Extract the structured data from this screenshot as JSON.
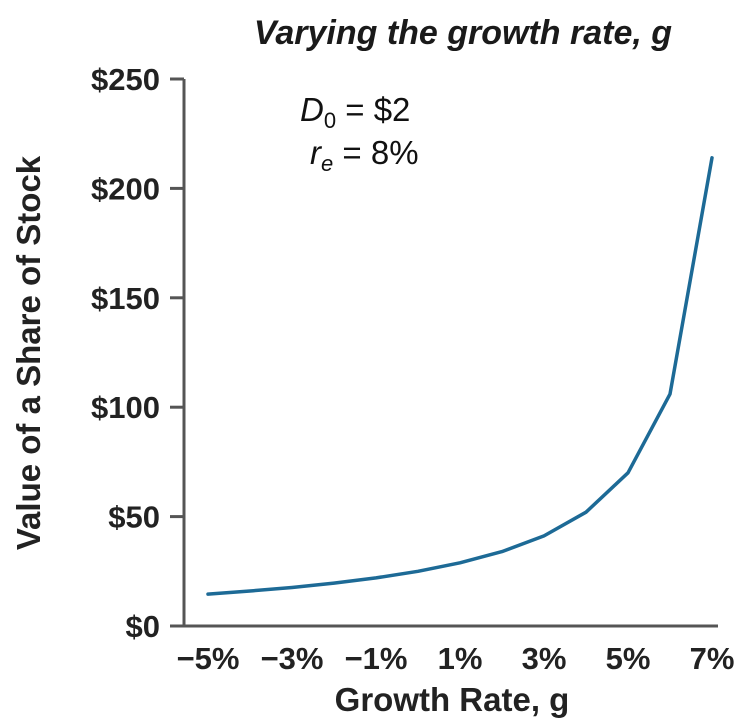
{
  "chart_data": {
    "type": "line",
    "title": "Varying the growth rate, g",
    "xlabel": "Growth Rate, g",
    "ylabel": "Value of a Share of Stock",
    "x": [
      -0.05,
      -0.04,
      -0.03,
      -0.02,
      -0.01,
      0.0,
      0.01,
      0.02,
      0.03,
      0.04,
      0.05,
      0.06,
      0.07
    ],
    "x_tick_values": [
      -0.05,
      -0.03,
      -0.01,
      0.01,
      0.03,
      0.05,
      0.07
    ],
    "x_tick_labels": [
      "−5%",
      "−3%",
      "−1%",
      "1%",
      "3%",
      "5%",
      "7%"
    ],
    "y_tick_values": [
      0,
      50,
      100,
      150,
      200,
      250
    ],
    "y_tick_labels": [
      "$0",
      "$50",
      "$100",
      "$150",
      "$200",
      "$250"
    ],
    "xlim": [
      -0.05,
      0.07
    ],
    "ylim": [
      0,
      250
    ],
    "series": [
      {
        "values": [
          14.6,
          16.0,
          17.6,
          19.6,
          22.0,
          25.0,
          28.9,
          34.0,
          41.2,
          52.0,
          70.0,
          106.0,
          214.0
        ],
        "color": "#1d6a96"
      }
    ],
    "annotations": {
      "d0_symbol": "D",
      "d0_subscript": "0",
      "d0_value": " = $2",
      "re_symbol": "r",
      "re_subscript": "e",
      "re_value": " = 8%"
    },
    "grid": false
  }
}
